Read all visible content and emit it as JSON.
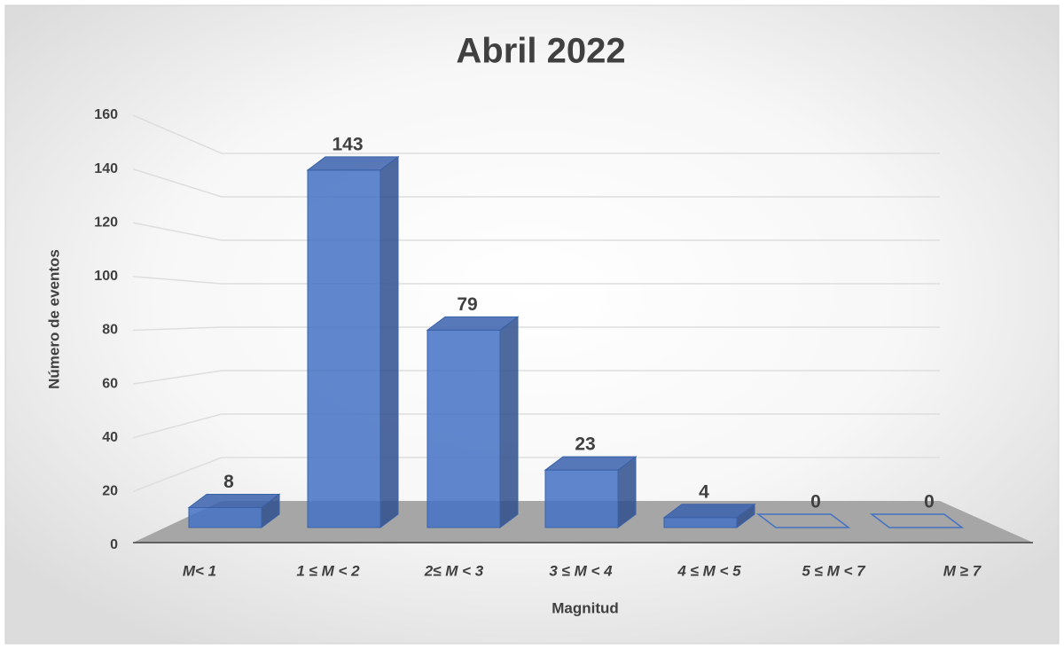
{
  "chart_data": {
    "type": "bar3d",
    "title": "Abril 2022",
    "x_label": "Magnitud",
    "y_label": "Número de eventos",
    "categories": [
      "M< 1",
      "1 ≤ M < 2",
      "2≤ M < 3",
      "3 ≤ M < 4",
      "4 ≤ M < 5",
      "5 ≤ M < 7",
      "M ≥ 7"
    ],
    "values": [
      8,
      143,
      79,
      23,
      4,
      0,
      0
    ],
    "color": "#4472c4",
    "ylim": [
      0,
      160
    ],
    "yticks": [
      0,
      20,
      40,
      60,
      80,
      100,
      120,
      140,
      160
    ],
    "grid": true
  }
}
